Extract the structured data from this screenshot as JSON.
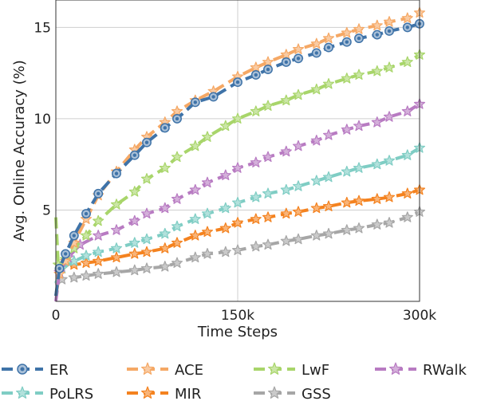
{
  "chart_data": {
    "type": "line",
    "title": "",
    "xlabel": "Time Steps",
    "ylabel": "Avg. Online Accuracy (%)",
    "xlim": [
      0,
      300000
    ],
    "ylim": [
      0,
      16.5
    ],
    "x_ticks": [
      0,
      150000,
      300000
    ],
    "x_tick_labels": [
      "0",
      "150k",
      "300k"
    ],
    "y_ticks": [
      5,
      10,
      15
    ],
    "y_tick_labels": [
      "5",
      "10",
      "15"
    ],
    "grid": true,
    "legend_position": "bottom",
    "series": [
      {
        "name": "ER",
        "color": "#3f73a8",
        "marker": "circle",
        "x": [
          0,
          3000,
          8000,
          15000,
          25000,
          35000,
          50000,
          65000,
          75000,
          90000,
          100000,
          115000,
          130000,
          150000,
          165000,
          175000,
          190000,
          200000,
          215000,
          225000,
          240000,
          250000,
          265000,
          275000,
          290000,
          300000
        ],
        "y": [
          0.3,
          1.8,
          2.6,
          3.6,
          4.8,
          5.9,
          7.0,
          8.0,
          8.7,
          9.5,
          10.0,
          10.9,
          11.2,
          12.0,
          12.4,
          12.7,
          13.1,
          13.3,
          13.6,
          13.9,
          14.2,
          14.4,
          14.6,
          14.8,
          15.0,
          15.2
        ]
      },
      {
        "name": "ACE",
        "color": "#f5a865",
        "marker": "star",
        "x": [
          0,
          3000,
          8000,
          15000,
          25000,
          35000,
          50000,
          65000,
          75000,
          90000,
          100000,
          115000,
          130000,
          150000,
          165000,
          175000,
          190000,
          200000,
          215000,
          225000,
          240000,
          250000,
          265000,
          275000,
          290000,
          300000
        ],
        "y": [
          0.3,
          1.5,
          2.2,
          3.2,
          4.5,
          5.8,
          7.1,
          8.3,
          9.0,
          9.8,
          10.4,
          11.0,
          11.5,
          12.3,
          12.8,
          13.1,
          13.5,
          13.8,
          14.1,
          14.4,
          14.7,
          14.9,
          15.1,
          15.3,
          15.5,
          15.8
        ]
      },
      {
        "name": "LwF",
        "color": "#a8d56a",
        "marker": "star",
        "x": [
          0,
          2000,
          8000,
          15000,
          25000,
          35000,
          50000,
          65000,
          75000,
          90000,
          100000,
          115000,
          125000,
          140000,
          150000,
          165000,
          175000,
          190000,
          200000,
          215000,
          225000,
          240000,
          250000,
          265000,
          275000,
          290000,
          300000
        ],
        "y": [
          4.6,
          2.0,
          2.3,
          2.9,
          3.6,
          4.4,
          5.3,
          6.0,
          6.7,
          7.3,
          7.9,
          8.5,
          9.0,
          9.6,
          10.0,
          10.4,
          10.7,
          11.0,
          11.3,
          11.6,
          11.9,
          12.2,
          12.4,
          12.6,
          12.8,
          13.1,
          13.5
        ]
      },
      {
        "name": "RWalk",
        "color": "#b87bc2",
        "marker": "star",
        "x": [
          0,
          3000,
          10000,
          20000,
          35000,
          50000,
          65000,
          75000,
          90000,
          100000,
          115000,
          125000,
          140000,
          150000,
          165000,
          175000,
          190000,
          200000,
          215000,
          225000,
          240000,
          250000,
          265000,
          275000,
          290000,
          300000
        ],
        "y": [
          0.0,
          1.6,
          2.4,
          3.1,
          3.6,
          3.9,
          4.4,
          4.8,
          5.1,
          5.6,
          6.1,
          6.5,
          6.9,
          7.3,
          7.6,
          7.9,
          8.2,
          8.5,
          8.8,
          9.1,
          9.4,
          9.6,
          9.8,
          10.1,
          10.4,
          10.8
        ]
      },
      {
        "name": "PoLRS",
        "color": "#7fcdc4",
        "marker": "star",
        "x": [
          0,
          5000,
          15000,
          25000,
          35000,
          50000,
          65000,
          75000,
          90000,
          100000,
          115000,
          125000,
          140000,
          150000,
          165000,
          175000,
          190000,
          200000,
          215000,
          225000,
          240000,
          250000,
          265000,
          275000,
          290000,
          300000
        ],
        "y": [
          1.0,
          1.8,
          2.2,
          2.5,
          2.7,
          2.9,
          3.2,
          3.4,
          3.7,
          4.1,
          4.5,
          4.8,
          5.1,
          5.4,
          5.7,
          5.9,
          6.1,
          6.3,
          6.6,
          6.8,
          7.1,
          7.3,
          7.5,
          7.7,
          8.0,
          8.4
        ]
      },
      {
        "name": "MIR",
        "color": "#f4821f",
        "marker": "star",
        "x": [
          0,
          5000,
          15000,
          25000,
          35000,
          50000,
          65000,
          75000,
          90000,
          100000,
          115000,
          125000,
          140000,
          150000,
          165000,
          175000,
          190000,
          200000,
          215000,
          225000,
          240000,
          250000,
          265000,
          275000,
          290000,
          300000
        ],
        "y": [
          1.5,
          1.8,
          2.0,
          2.1,
          2.2,
          2.4,
          2.6,
          2.7,
          2.9,
          3.2,
          3.6,
          3.8,
          4.0,
          4.3,
          4.5,
          4.6,
          4.8,
          4.9,
          5.1,
          5.2,
          5.4,
          5.5,
          5.6,
          5.7,
          5.9,
          6.1
        ]
      },
      {
        "name": "GSS",
        "color": "#a6a6a6",
        "marker": "star",
        "x": [
          0,
          5000,
          15000,
          25000,
          35000,
          50000,
          65000,
          75000,
          90000,
          100000,
          115000,
          125000,
          140000,
          150000,
          165000,
          175000,
          190000,
          200000,
          215000,
          225000,
          240000,
          250000,
          265000,
          275000,
          290000,
          300000
        ],
        "y": [
          0.9,
          1.2,
          1.3,
          1.4,
          1.5,
          1.6,
          1.7,
          1.8,
          1.9,
          2.1,
          2.4,
          2.6,
          2.7,
          2.8,
          3.0,
          3.1,
          3.3,
          3.4,
          3.6,
          3.7,
          3.9,
          4.0,
          4.2,
          4.3,
          4.6,
          4.9
        ]
      }
    ],
    "legend": [
      {
        "name": "ER",
        "color": "#3f73a8",
        "marker": "circle"
      },
      {
        "name": "ACE",
        "color": "#f5a865",
        "marker": "star"
      },
      {
        "name": "LwF",
        "color": "#a8d56a",
        "marker": "star"
      },
      {
        "name": "RWalk",
        "color": "#b87bc2",
        "marker": "star"
      },
      {
        "name": "PoLRS",
        "color": "#7fcdc4",
        "marker": "star"
      },
      {
        "name": "MIR",
        "color": "#f4821f",
        "marker": "star"
      },
      {
        "name": "GSS",
        "color": "#a6a6a6",
        "marker": "star"
      }
    ]
  }
}
